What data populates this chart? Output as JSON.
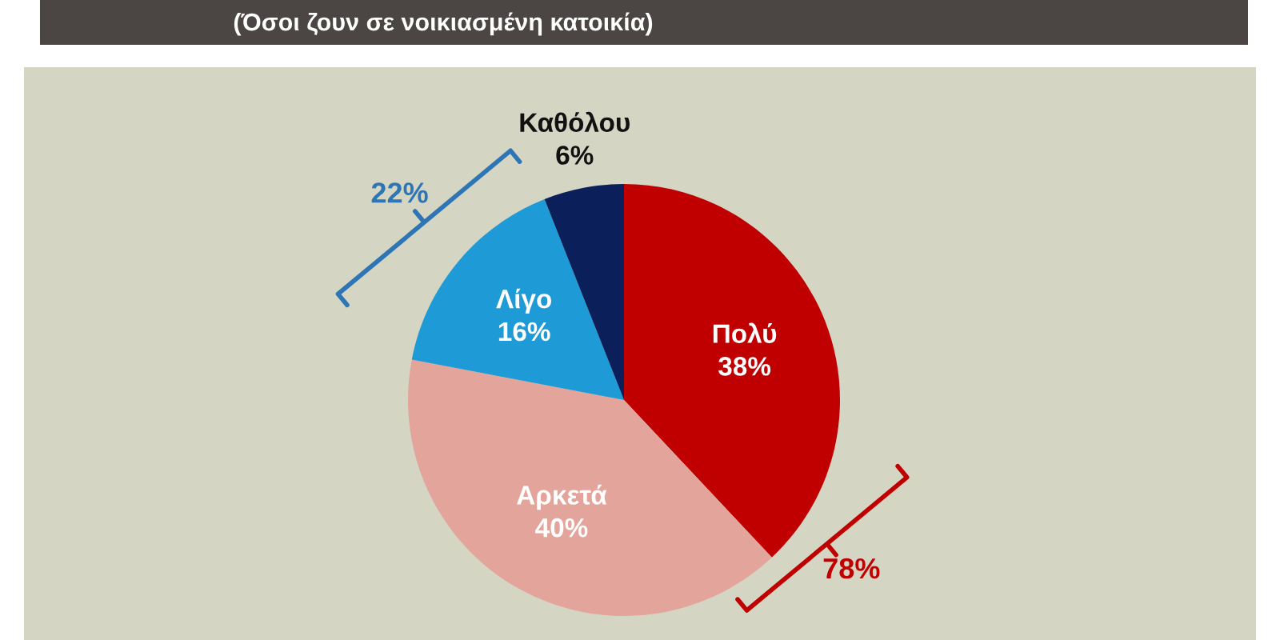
{
  "chart_data": {
    "type": "pie",
    "subtitle": "(Όσοι ζουν σε νοικιασμένη κατοικία)",
    "categories": [
      "Πολύ",
      "Αρκετά",
      "Λίγο",
      "Καθόλου"
    ],
    "values": [
      38,
      40,
      16,
      6
    ],
    "colors": [
      "#c00000",
      "#e3a49b",
      "#1e9bd7",
      "#0b1f5a"
    ],
    "value_labels": [
      "38%",
      "40%",
      "16%",
      "6%"
    ],
    "annotations": [
      "22%",
      "78%"
    ]
  }
}
